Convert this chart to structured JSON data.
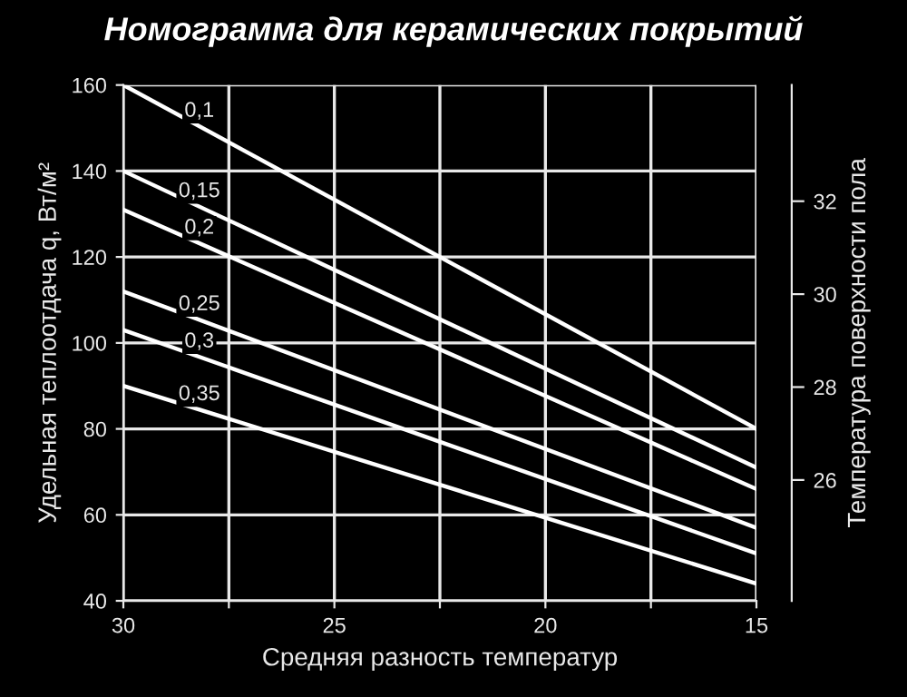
{
  "chart_data": {
    "type": "line",
    "title": "Номограмма для керамических покрытий",
    "xlabel": "Средняя разность температур",
    "ylabel": "Удельная теплоотдача q, Вт/м²",
    "y2label": "Температура поверхности пола",
    "x": [
      30,
      15
    ],
    "xlim": [
      30,
      15
    ],
    "xticks": [
      30,
      {
        "value": 27.5,
        "label": null
      },
      25,
      {
        "value": 22.5,
        "label": null
      },
      20,
      {
        "value": 17.5,
        "label": null
      },
      15
    ],
    "ylim": [
      40,
      160
    ],
    "yticks": [
      40,
      60,
      80,
      100,
      120,
      140,
      160
    ],
    "y2lim": [
      23.4,
      34.5
    ],
    "y2ticks": [
      26,
      28,
      30,
      32
    ],
    "grid": true,
    "legend": false,
    "marker": "none",
    "line_style": "solid",
    "series": [
      {
        "name": "0,1",
        "color": "#ffffff",
        "values": [
          160,
          80
        ]
      },
      {
        "name": "0,15",
        "color": "#ffffff",
        "values": [
          140,
          71
        ]
      },
      {
        "name": "0,2",
        "color": "#ffffff",
        "values": [
          131,
          66
        ]
      },
      {
        "name": "0,25",
        "color": "#ffffff",
        "values": [
          112,
          57
        ]
      },
      {
        "name": "0,3",
        "color": "#ffffff",
        "values": [
          103,
          51
        ]
      },
      {
        "name": "0,35",
        "color": "#ffffff",
        "values": [
          90,
          44
        ]
      }
    ]
  }
}
